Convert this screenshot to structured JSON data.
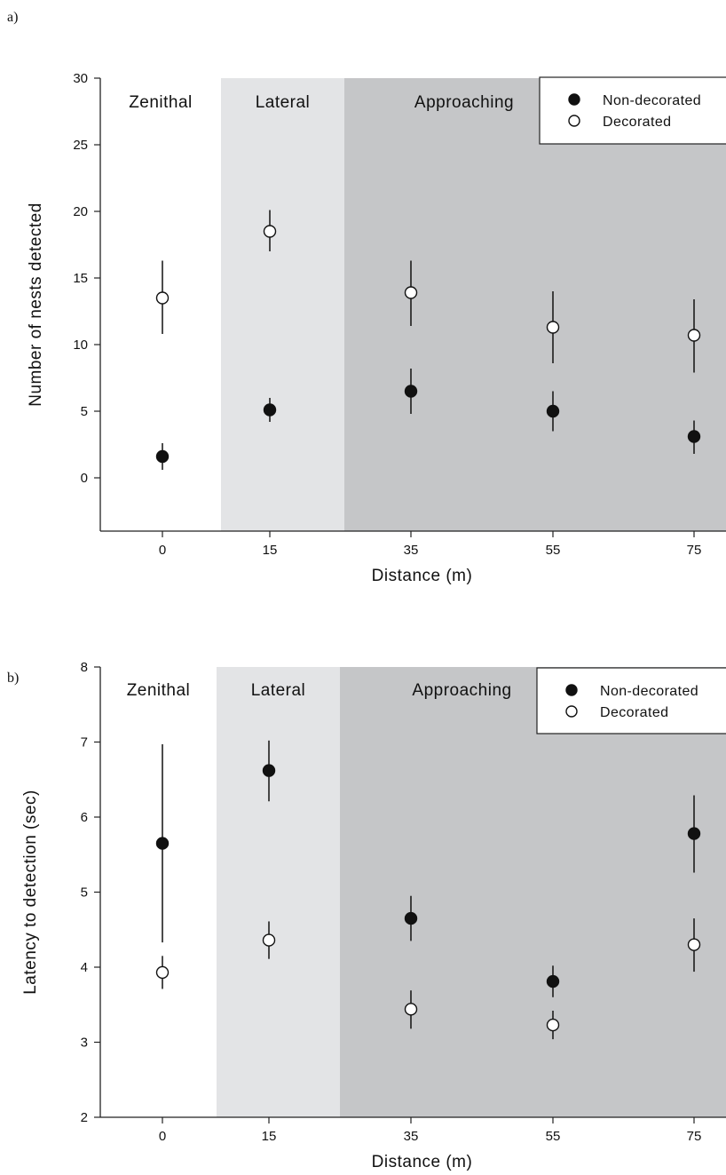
{
  "chart_data": [
    {
      "type": "scatter",
      "panel_label": "a)",
      "title": "",
      "xlabel": "Distance (m)",
      "ylabel": "Number of nests detected",
      "categories": [
        "0",
        "15",
        "35",
        "55",
        "75"
      ],
      "ylim": [
        -4,
        30
      ],
      "yticks": [
        "0",
        "5",
        "10",
        "15",
        "20",
        "25",
        "30"
      ],
      "regions": [
        {
          "label": "Zenithal",
          "color": "#ffffff"
        },
        {
          "label": "Lateral",
          "color": "#e3e4e6"
        },
        {
          "label": "Approaching",
          "color": "#c5c6c8"
        }
      ],
      "legend_position": "top-right",
      "series": [
        {
          "name": "Non-decorated",
          "marker": "filled",
          "values": [
            1.6,
            5.1,
            6.5,
            5.0,
            3.1
          ],
          "err_low": [
            0.6,
            4.2,
            4.8,
            3.5,
            1.8
          ],
          "err_high": [
            2.6,
            6.0,
            8.2,
            6.5,
            4.3
          ]
        },
        {
          "name": "Decorated",
          "marker": "open",
          "values": [
            13.5,
            18.5,
            13.9,
            11.3,
            10.7
          ],
          "err_low": [
            10.8,
            17.0,
            11.4,
            8.6,
            7.9
          ],
          "err_high": [
            16.3,
            20.1,
            16.3,
            14.0,
            13.4
          ]
        }
      ]
    },
    {
      "type": "scatter",
      "panel_label": "b)",
      "title": "",
      "xlabel": "Distance (m)",
      "ylabel": "Latency to detection (sec)",
      "categories": [
        "0",
        "15",
        "35",
        "55",
        "75"
      ],
      "ylim": [
        2,
        8
      ],
      "yticks": [
        "2",
        "3",
        "4",
        "5",
        "6",
        "7",
        "8"
      ],
      "regions": [
        {
          "label": "Zenithal",
          "color": "#ffffff"
        },
        {
          "label": "Lateral",
          "color": "#e3e4e6"
        },
        {
          "label": "Approaching",
          "color": "#c5c6c8"
        }
      ],
      "legend_position": "top-right",
      "series": [
        {
          "name": "Non-decorated",
          "marker": "filled",
          "values": [
            5.65,
            6.62,
            4.65,
            3.81,
            5.78
          ],
          "err_low": [
            4.33,
            6.21,
            4.35,
            3.6,
            5.26
          ],
          "err_high": [
            6.97,
            7.02,
            4.95,
            4.02,
            6.29
          ]
        },
        {
          "name": "Decorated",
          "marker": "open",
          "values": [
            3.93,
            4.36,
            3.44,
            3.23,
            4.3
          ],
          "err_low": [
            3.71,
            4.11,
            3.18,
            3.04,
            3.94
          ],
          "err_high": [
            4.15,
            4.61,
            3.69,
            3.42,
            4.65
          ]
        }
      ]
    }
  ]
}
